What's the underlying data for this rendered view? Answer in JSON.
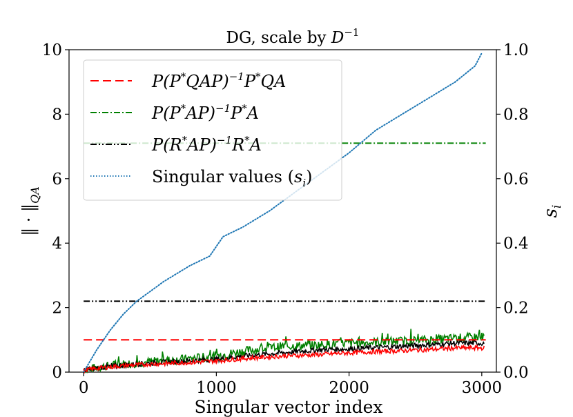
{
  "chart_data": {
    "type": "line",
    "title": "DG, scale by D^{-1}",
    "title_parts": {
      "prefix": "DG, scale by ",
      "base": "D",
      "sup": "−1"
    },
    "xlabel": "Singular vector index",
    "ylabel_left": "‖ · ‖_QA",
    "ylabel_left_parts": {
      "main": "‖ · ‖",
      "sub": "QA"
    },
    "ylabel_right": "s_i",
    "ylabel_right_parts": {
      "main": "s",
      "sub": "i"
    },
    "xlim": [
      -110,
      3110
    ],
    "ylim_left": [
      0,
      10
    ],
    "ylim_right": [
      0,
      1.0
    ],
    "xticks": [
      0,
      1000,
      2000,
      3000
    ],
    "xtick_labels": [
      "0",
      "1000",
      "2000",
      "3000"
    ],
    "yticks_left": [
      0,
      2,
      4,
      6,
      8,
      10
    ],
    "ytick_labels_left": [
      "0",
      "2",
      "4",
      "6",
      "8",
      "10"
    ],
    "yticks_right": [
      0,
      0.2,
      0.4,
      0.6,
      0.8,
      1.0
    ],
    "ytick_labels_right": [
      "0.0",
      "0.2",
      "0.4",
      "0.6",
      "0.8",
      "1.0"
    ],
    "legend_position": "upper-left",
    "series": [
      {
        "name": "P(P*QAP)^{-1}P*QA",
        "color": "#ff0000",
        "style": "dashed",
        "axis": "left",
        "constant": 1.0,
        "x": [
          0,
          3000
        ],
        "trace_x": [
          0,
          100,
          300,
          500,
          800,
          1000,
          1200,
          1500,
          1800,
          2000,
          2300,
          2600,
          2800,
          3000
        ],
        "trace_y": [
          0.05,
          0.12,
          0.2,
          0.25,
          0.3,
          0.35,
          0.42,
          0.5,
          0.55,
          0.6,
          0.65,
          0.7,
          0.75,
          0.75
        ]
      },
      {
        "name": "P(P*AP)^{-1}P*A",
        "color": "#008000",
        "style": "dashdot",
        "axis": "left",
        "constant": 7.1,
        "x": [
          0,
          3000
        ],
        "trace_x": [
          0,
          100,
          300,
          500,
          800,
          1000,
          1200,
          1500,
          1800,
          2000,
          2300,
          2600,
          2800,
          3000
        ],
        "trace_y": [
          0.05,
          0.15,
          0.25,
          0.32,
          0.42,
          0.5,
          0.65,
          0.8,
          0.85,
          0.9,
          0.95,
          1.0,
          1.05,
          1.1
        ]
      },
      {
        "name": "P(R*AP)^{-1}R*A",
        "color": "#000000",
        "style": "dashdotdot",
        "axis": "left",
        "constant": 2.2,
        "x": [
          0,
          3000
        ],
        "trace_x": [
          0,
          100,
          300,
          500,
          800,
          1000,
          1200,
          1500,
          1800,
          2000,
          2300,
          2600,
          2800,
          3000
        ],
        "trace_y": [
          0.05,
          0.13,
          0.22,
          0.28,
          0.35,
          0.4,
          0.5,
          0.6,
          0.7,
          0.72,
          0.78,
          0.85,
          0.9,
          0.9
        ]
      },
      {
        "name": "Singular values (s_i)",
        "color": "#1f77b4",
        "style": "dotted",
        "axis": "right",
        "x": [
          0,
          100,
          200,
          300,
          400,
          500,
          600,
          800,
          950,
          1000,
          1050,
          1100,
          1200,
          1400,
          1600,
          1800,
          2000,
          2200,
          2400,
          2600,
          2800,
          2950,
          3000
        ],
        "y": [
          0.0,
          0.07,
          0.13,
          0.18,
          0.22,
          0.25,
          0.28,
          0.33,
          0.36,
          0.39,
          0.42,
          0.43,
          0.45,
          0.5,
          0.56,
          0.62,
          0.68,
          0.75,
          0.8,
          0.85,
          0.9,
          0.95,
          0.99
        ]
      }
    ],
    "legend": [
      {
        "label": "P(P*QAP)^{-1}P*QA",
        "parts": [
          [
            "P(P",
            ""
          ],
          [
            "*",
            "sup"
          ],
          [
            "QAP)",
            ""
          ],
          [
            "−1",
            "sup"
          ],
          [
            "P",
            ""
          ],
          [
            "*",
            "sup"
          ],
          [
            "QA",
            ""
          ]
        ]
      },
      {
        "label": "P(P*AP)^{-1}P*A",
        "parts": [
          [
            "P(P",
            ""
          ],
          [
            "*",
            "sup"
          ],
          [
            "AP)",
            ""
          ],
          [
            "−1",
            "sup"
          ],
          [
            "P",
            ""
          ],
          [
            "*",
            "sup"
          ],
          [
            "A",
            ""
          ]
        ]
      },
      {
        "label": "P(R*AP)^{-1}R*A",
        "parts": [
          [
            "P(R",
            ""
          ],
          [
            "*",
            "sup"
          ],
          [
            "AP)",
            ""
          ],
          [
            "−1",
            "sup"
          ],
          [
            "R",
            ""
          ],
          [
            "*",
            "sup"
          ],
          [
            "A",
            ""
          ]
        ]
      },
      {
        "label": "Singular values (s_i)",
        "parts": [
          [
            "Singular values (",
            "plain"
          ],
          [
            "s",
            ""
          ],
          [
            "i",
            "sub"
          ],
          [
            ")",
            "plain"
          ]
        ]
      }
    ]
  }
}
